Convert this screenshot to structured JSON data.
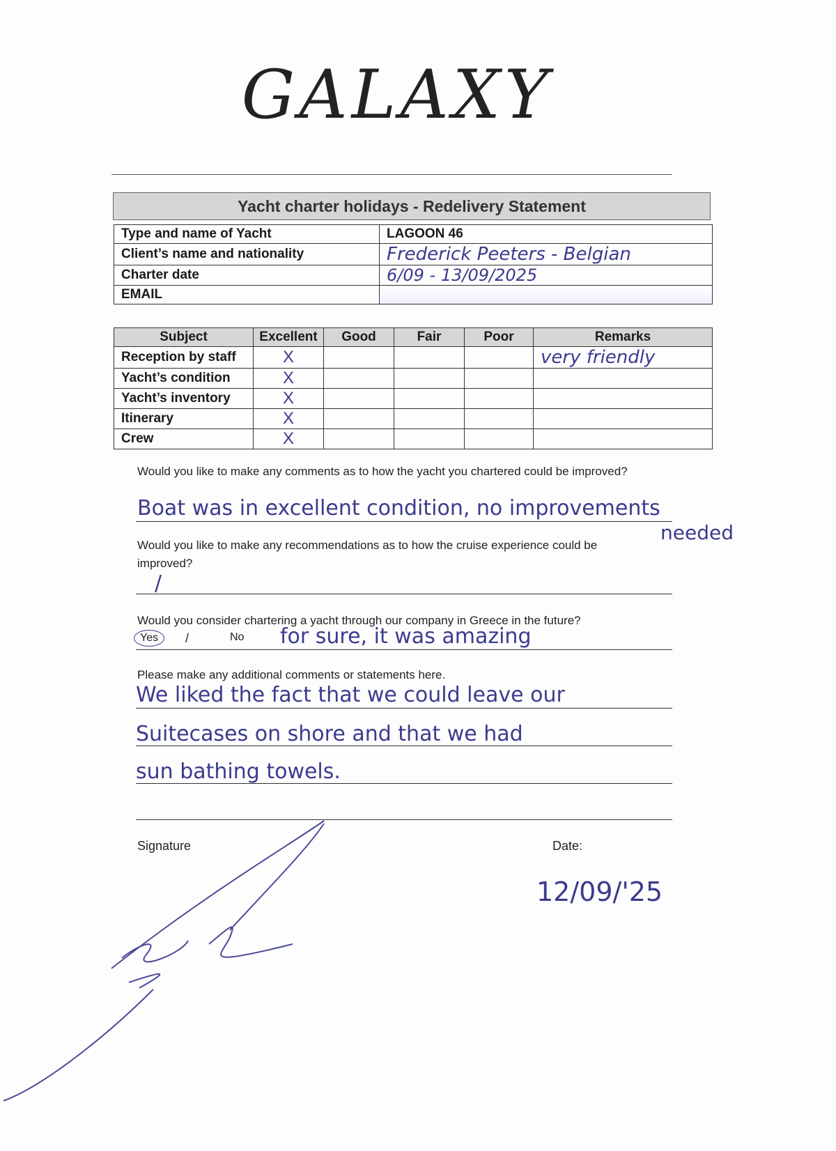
{
  "logo": "GALAXY",
  "banner": "Yacht charter holidays - Redelivery Statement",
  "info": [
    {
      "label": "Type and name of Yacht",
      "value": "LAGOON 46"
    },
    {
      "label": "Client’s name and nationality",
      "value": "Frederick Peeters - Belgian"
    },
    {
      "label": "Charter date",
      "value": "6/09 - 13/09/2025"
    },
    {
      "label": "EMAIL",
      "value": ""
    }
  ],
  "ratings": {
    "headers": [
      "Subject",
      "Excellent",
      "Good",
      "Fair",
      "Poor",
      "Remarks"
    ],
    "mark": "X",
    "rows": [
      {
        "subject": "Reception by staff",
        "rating": "Excellent",
        "remarks": "very friendly"
      },
      {
        "subject": "Yacht’s condition",
        "rating": "Excellent",
        "remarks": ""
      },
      {
        "subject": "Yacht’s inventory",
        "rating": "Excellent",
        "remarks": ""
      },
      {
        "subject": "Itinerary",
        "rating": "Excellent",
        "remarks": ""
      },
      {
        "subject": "Crew",
        "rating": "Excellent",
        "remarks": ""
      }
    ]
  },
  "questions": {
    "q1": "Would you like to make any comments as to how the yacht you chartered could be improved?",
    "a1": "Boat was in excellent condition, no improvements",
    "a1b": "needed",
    "q2": "Would you like to make any recommendations as to how the cruise experience could be improved?",
    "a2": "/",
    "q3": "Would you consider chartering a yacht through our company in Greece in the future?",
    "yes": "Yes",
    "sep": "/",
    "no": "No",
    "selected": "Yes",
    "a3": "for sure, it was amazing",
    "q4": "Please make any additional comments or statements here.",
    "a4": [
      "We liked the fact that we could leave our",
      "Suitecases on shore and that we had",
      "sun bathing towels."
    ]
  },
  "signature_label": "Signature",
  "date_label": "Date:",
  "date_value": "12/09/'25",
  "ink_color": "#3b3b8e"
}
